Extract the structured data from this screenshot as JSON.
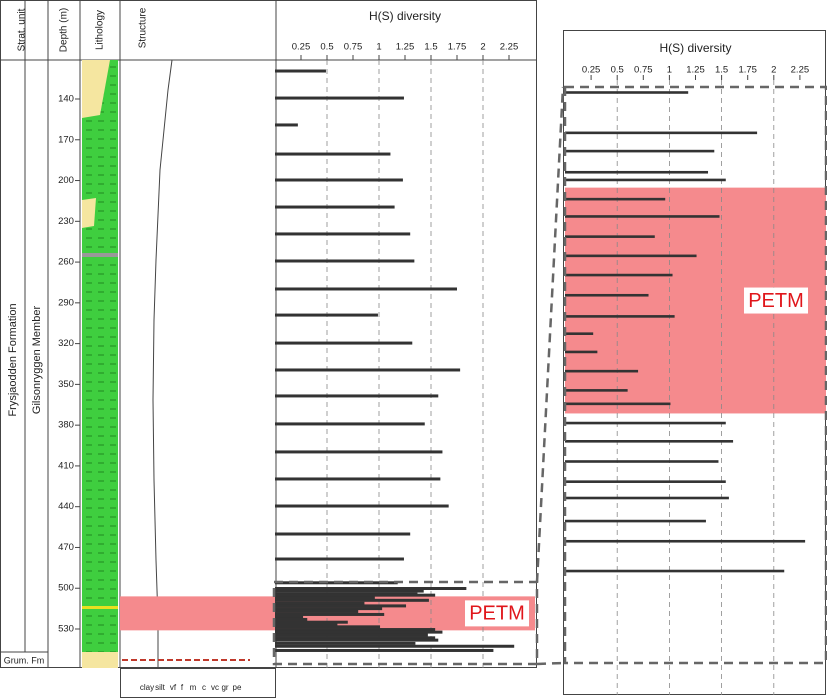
{
  "strat_column": {
    "headers": {
      "strat_unit": "Strat. unit",
      "depth": "Depth (m)",
      "lithology": "Lithology",
      "structure": "Structure"
    },
    "formation": "Frysjaodden Formation",
    "member": "Gilsonryggen Member",
    "lower_unit": "Grum. Fm",
    "grain_sizes": [
      "clay",
      "silt",
      "vf",
      "f",
      "m",
      "c",
      "vc",
      "gr",
      "pe"
    ]
  },
  "chart_data": [
    {
      "type": "bar",
      "orientation": "horizontal",
      "title": "H(S) diversity",
      "color": "#333333",
      "depths": [
        119.4,
        139.3,
        159.1,
        180.5,
        199.6,
        219.5,
        239.3,
        259.2,
        279.8,
        299.0,
        319.6,
        339.4,
        358.5,
        379.1,
        399.7,
        419.6,
        439.5,
        460.1,
        478.5,
        496.0,
        500.2,
        502.1,
        504.3,
        505.1,
        507.1,
        508.9,
        511.0,
        513.0,
        515.0,
        517.1,
        519.3,
        521.1,
        523.0,
        525.0,
        527.0,
        528.4,
        530.4,
        532.3,
        534.4,
        536.5,
        538.2,
        540.6,
        542.7,
        545.8
      ],
      "values": [
        0.49,
        1.24,
        0.22,
        1.11,
        1.23,
        1.15,
        1.3,
        1.34,
        1.75,
        0.99,
        1.32,
        1.78,
        1.57,
        1.44,
        1.61,
        1.59,
        1.67,
        1.3,
        1.24,
        1.18,
        1.84,
        1.43,
        1.37,
        1.54,
        0.96,
        1.48,
        0.86,
        1.26,
        1.03,
        0.8,
        1.05,
        0.27,
        0.31,
        0.7,
        0.6,
        1.01,
        1.54,
        1.61,
        1.47,
        1.54,
        1.57,
        1.35,
        2.3,
        2.1
      ],
      "ylim": [
        111.3,
        558.7
      ],
      "yticks": [
        140,
        170,
        200,
        230,
        260,
        290,
        320,
        350,
        380,
        410,
        440,
        470,
        500,
        530
      ],
      "xlim": [
        0,
        2.5
      ],
      "xticks": [
        0.25,
        0.5,
        0.75,
        1,
        1.25,
        1.5,
        1.75,
        2,
        2.25
      ],
      "band": {
        "label": "PETM",
        "range": [
          506,
          531
        ],
        "color": "#f58a8d"
      }
    },
    {
      "type": "bar",
      "orientation": "horizontal",
      "title": "H(S) diversity",
      "color": "#333333",
      "depths": [
        496.0,
        500.2,
        502.1,
        504.3,
        505.1,
        507.1,
        508.9,
        511.0,
        513.0,
        515.0,
        517.1,
        519.3,
        521.1,
        523.0,
        525.0,
        527.0,
        528.4,
        530.4,
        532.3,
        534.4,
        536.5,
        538.2,
        540.6,
        542.7,
        545.8
      ],
      "values": [
        1.18,
        1.84,
        1.43,
        1.37,
        1.54,
        0.96,
        1.48,
        0.86,
        1.26,
        1.03,
        0.8,
        1.05,
        0.27,
        0.31,
        0.7,
        0.6,
        1.01,
        1.54,
        1.61,
        1.47,
        1.54,
        1.57,
        1.35,
        2.3,
        2.1
      ],
      "ylim": [
        494.7,
        558.7
      ],
      "xlim": [
        0,
        2.5
      ],
      "xticks": [
        0.25,
        0.5,
        0.75,
        1,
        1.25,
        1.5,
        1.75,
        2,
        2.25
      ],
      "band": {
        "label": "PETM",
        "range": [
          505.9,
          529.4
        ],
        "color": "#f58a8d"
      }
    }
  ]
}
